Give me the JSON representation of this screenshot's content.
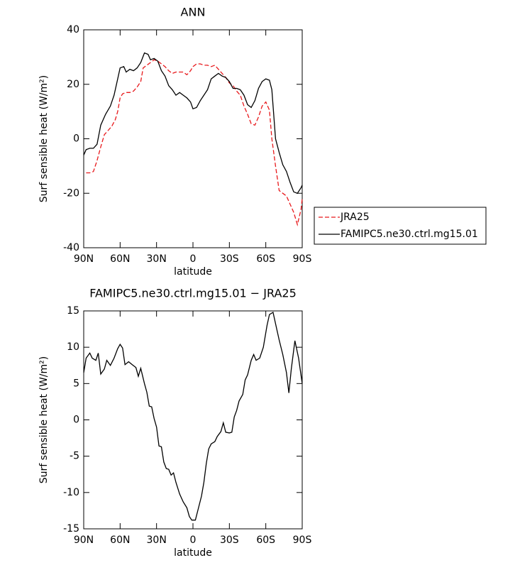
{
  "chart_data": [
    {
      "type": "line",
      "title": "ANN",
      "xlabel": "latitude",
      "ylabel": "Surf sensible heat (W/m²)",
      "xlim": [
        90,
        -90
      ],
      "ylim": [
        -40,
        40
      ],
      "xticks": [
        {
          "value": 90,
          "label": "90N"
        },
        {
          "value": 60,
          "label": "60N"
        },
        {
          "value": 30,
          "label": "30N"
        },
        0,
        {
          "value": -30,
          "label": "30S"
        },
        {
          "value": -60,
          "label": "60S"
        },
        {
          "value": -90,
          "label": "90S"
        }
      ],
      "yticks": [
        -40,
        -20,
        0,
        20,
        40
      ],
      "legend": "outside-right",
      "series": [
        {
          "name": "JRA25",
          "color": "#e8191c",
          "dash": true,
          "x": [
            88,
            85,
            82,
            79,
            76,
            73,
            70,
            67,
            64,
            62,
            60,
            58,
            55,
            52,
            49,
            46,
            43,
            41,
            38,
            35,
            32,
            29,
            26,
            23,
            20,
            17,
            14,
            11,
            8,
            5,
            2,
            0,
            -3,
            -6,
            -9,
            -12,
            -15,
            -18,
            -21,
            -24,
            -27,
            -30,
            -33,
            -36,
            -39,
            -42,
            -45,
            -48,
            -51,
            -54,
            -57,
            -60,
            -63,
            -65,
            -68,
            -71,
            -74,
            -77,
            -80,
            -83,
            -86,
            -89,
            -90
          ],
          "values": [
            -12.5,
            -12.5,
            -12,
            -8,
            -3,
            1.5,
            3,
            4.5,
            7,
            10,
            15,
            16.5,
            17,
            17,
            17.5,
            19,
            21,
            26,
            27,
            28,
            29,
            28.5,
            27.5,
            26.5,
            25,
            24,
            24.5,
            24.5,
            24.5,
            23.5,
            25,
            26.5,
            27.5,
            27.5,
            27,
            27,
            26.5,
            27,
            25.5,
            24,
            22.5,
            20.5,
            19.5,
            17.5,
            16,
            12,
            9,
            5.5,
            5,
            8,
            12,
            13.5,
            10.5,
            0,
            -10,
            -19,
            -20,
            -21,
            -24,
            -27,
            -31.5,
            -26,
            -22
          ]
        },
        {
          "name": "FAMIPC5.ne30.ctrl.mg15.01",
          "color": "#000000",
          "dash": false,
          "x": [
            90,
            88,
            85,
            82,
            79,
            76,
            72,
            68,
            65,
            62,
            60,
            57,
            55,
            52,
            49,
            46,
            43,
            40,
            37,
            35,
            32,
            29,
            26,
            23,
            20,
            17,
            14,
            11,
            8,
            5,
            2,
            0,
            -3,
            -6,
            -9,
            -12,
            -15,
            -18,
            -21,
            -24,
            -27,
            -30,
            -33,
            -36,
            -39,
            -42,
            -45,
            -48,
            -51,
            -54,
            -57,
            -60,
            -63,
            -65,
            -68,
            -71,
            -74,
            -77,
            -80,
            -83,
            -86,
            -89,
            -90
          ],
          "values": [
            -6,
            -4,
            -3.5,
            -3.5,
            -2,
            5,
            9,
            12,
            16,
            22,
            26,
            26.5,
            24.5,
            25.5,
            25,
            26,
            28,
            31.5,
            31,
            29,
            29.5,
            28.5,
            25,
            23,
            19.5,
            18,
            16,
            17,
            16,
            15,
            13.5,
            11,
            11.5,
            14,
            16,
            18,
            22,
            23,
            24,
            23,
            22.5,
            21,
            18.5,
            18.5,
            18,
            16,
            12.5,
            11.5,
            14,
            18.5,
            21,
            22,
            21.5,
            18,
            0,
            -5,
            -9.5,
            -12,
            -16,
            -19.5,
            -20,
            -18,
            -17
          ]
        }
      ]
    },
    {
      "type": "line",
      "title": "FAMIPC5.ne30.ctrl.mg15.01 − JRA25",
      "xlabel": "latitude",
      "ylabel": "Surf sensible heat (W/m²)",
      "xlim": [
        90,
        -90
      ],
      "ylim": [
        -15,
        15
      ],
      "xticks": [
        {
          "value": 90,
          "label": "90N"
        },
        {
          "value": 60,
          "label": "60N"
        },
        {
          "value": 30,
          "label": "30N"
        },
        0,
        {
          "value": -30,
          "label": "30S"
        },
        {
          "value": -60,
          "label": "60S"
        },
        {
          "value": -90,
          "label": "90S"
        }
      ],
      "yticks": [
        -15,
        -10,
        -5,
        0,
        5,
        10,
        15
      ],
      "series": [
        {
          "color": "#000000",
          "dash": false,
          "x": [
            90,
            88,
            85,
            83,
            80,
            78,
            76,
            73,
            71,
            68,
            65,
            62,
            60,
            58,
            56,
            53,
            50,
            47,
            45,
            43,
            40,
            38,
            36,
            34,
            32,
            30,
            28,
            26,
            24,
            22,
            20,
            18,
            16,
            14,
            11,
            8,
            5,
            3,
            1,
            -2,
            -4,
            -7,
            -9,
            -11,
            -13,
            -15,
            -18,
            -20,
            -23,
            -25,
            -27,
            -30,
            -32,
            -34,
            -36,
            -38,
            -41,
            -43,
            -45,
            -48,
            -50,
            -52,
            -55,
            -58,
            -61,
            -63,
            -66,
            -69,
            -71,
            -74,
            -77,
            -79,
            -81,
            -84,
            -87,
            -90
          ],
          "values": [
            6.5,
            8.5,
            9.2,
            8.5,
            8.2,
            9.2,
            6.3,
            7,
            8.2,
            7.5,
            8.5,
            9.8,
            10.4,
            9.9,
            7.6,
            8,
            7.6,
            7.2,
            6,
            7.1,
            5,
            3.8,
            1.9,
            1.8,
            0.2,
            -1,
            -3.6,
            -3.7,
            -5.8,
            -6.7,
            -6.8,
            -7.6,
            -7.3,
            -8.6,
            -10.2,
            -11.3,
            -12.1,
            -13.3,
            -13.8,
            -13.8,
            -12.5,
            -10.5,
            -8.6,
            -6,
            -4,
            -3.3,
            -3,
            -2.3,
            -1.6,
            -0.4,
            -1.7,
            -1.8,
            -1.7,
            0.4,
            1.3,
            2.6,
            3.5,
            5.5,
            6.2,
            8.2,
            9,
            8.2,
            8.5,
            10,
            13,
            14.5,
            14.8,
            12.5,
            11,
            9,
            6.5,
            3.7,
            7,
            10.9,
            8.5,
            5
          ]
        }
      ]
    }
  ]
}
